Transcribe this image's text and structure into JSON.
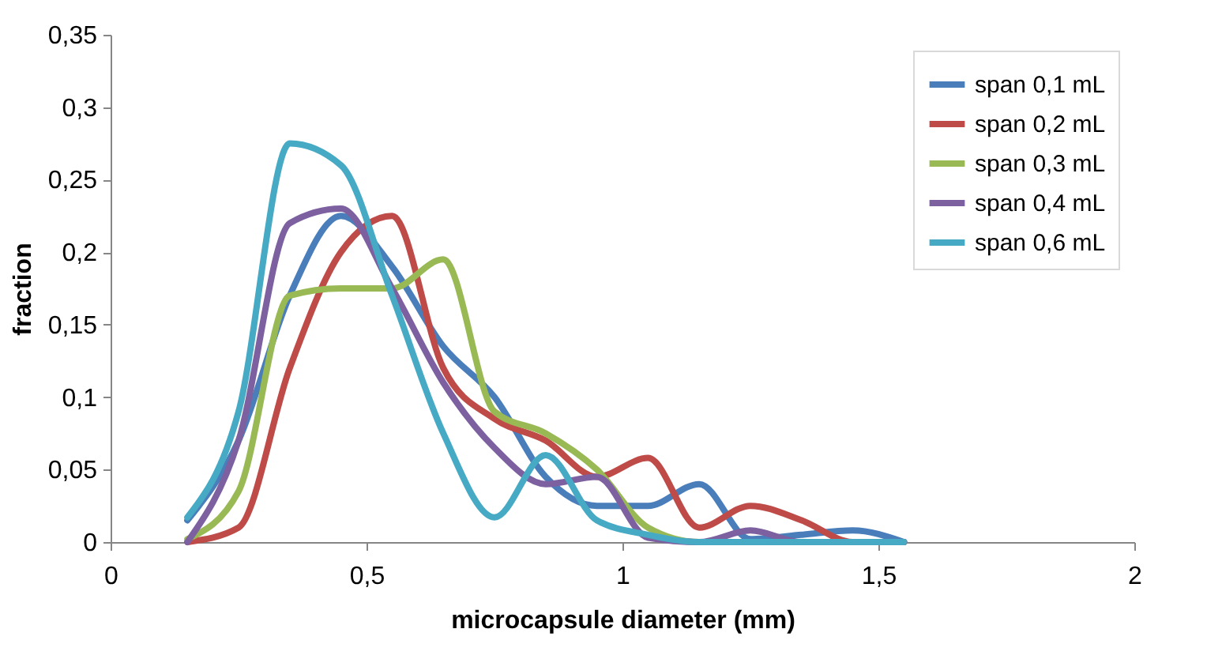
{
  "chart_data": {
    "type": "line",
    "xlabel": "microcapsule diameter (mm)",
    "ylabel": "fraction",
    "x": [
      0.15,
      0.25,
      0.35,
      0.45,
      0.55,
      0.65,
      0.75,
      0.85,
      0.95,
      1.05,
      1.15,
      1.25,
      1.35,
      1.45,
      1.55
    ],
    "series": [
      {
        "name": "span 0,1 mL",
        "color": "#4a7ebb",
        "values": [
          0.015,
          0.07,
          0.17,
          0.225,
          0.19,
          0.135,
          0.1,
          0.045,
          0.025,
          0.025,
          0.04,
          0.002,
          0.005,
          0.008,
          0
        ]
      },
      {
        "name": "span 0,2 mL",
        "color": "#be4b48",
        "values": [
          0,
          0.01,
          0.12,
          0.2,
          0.225,
          0.12,
          0.085,
          0.07,
          0.045,
          0.058,
          0.01,
          0.025,
          0.015,
          0,
          0
        ]
      },
      {
        "name": "span 0,3 mL",
        "color": "#98b954",
        "values": [
          0.002,
          0.035,
          0.17,
          0.175,
          0.175,
          0.195,
          0.09,
          0.075,
          0.05,
          0.01,
          0,
          0,
          null,
          null,
          null
        ]
      },
      {
        "name": "span 0,4 mL",
        "color": "#7d60a0",
        "values": [
          0,
          0.07,
          0.22,
          0.23,
          0.175,
          0.11,
          0.065,
          0.04,
          0.045,
          0.003,
          0,
          0.008,
          0,
          0,
          0
        ]
      },
      {
        "name": "span 0,6 mL",
        "color": "#46aac5",
        "values": [
          0.017,
          0.09,
          0.275,
          0.26,
          0.17,
          0.075,
          0.017,
          0.06,
          0.015,
          0.005,
          0,
          0,
          0,
          0,
          0
        ]
      }
    ],
    "xlim": [
      0,
      2
    ],
    "xticks": [
      {
        "value": 0,
        "label": "0"
      },
      {
        "value": 0.5,
        "label": "0,5"
      },
      {
        "value": 1,
        "label": "1"
      },
      {
        "value": 1.5,
        "label": "1,5"
      },
      {
        "value": 2,
        "label": "2"
      }
    ],
    "ylim": [
      0,
      0.35
    ],
    "yticks": [
      {
        "value": 0,
        "label": "0"
      },
      {
        "value": 0.05,
        "label": "0,05"
      },
      {
        "value": 0.1,
        "label": "0,1"
      },
      {
        "value": 0.15,
        "label": "0,15"
      },
      {
        "value": 0.2,
        "label": "0,2"
      },
      {
        "value": 0.25,
        "label": "0,25"
      },
      {
        "value": 0.3,
        "label": "0,3"
      },
      {
        "value": 0.35,
        "label": "0,35"
      }
    ],
    "grid": false,
    "legend": "top right",
    "marker": "none",
    "line_style": "solid"
  }
}
